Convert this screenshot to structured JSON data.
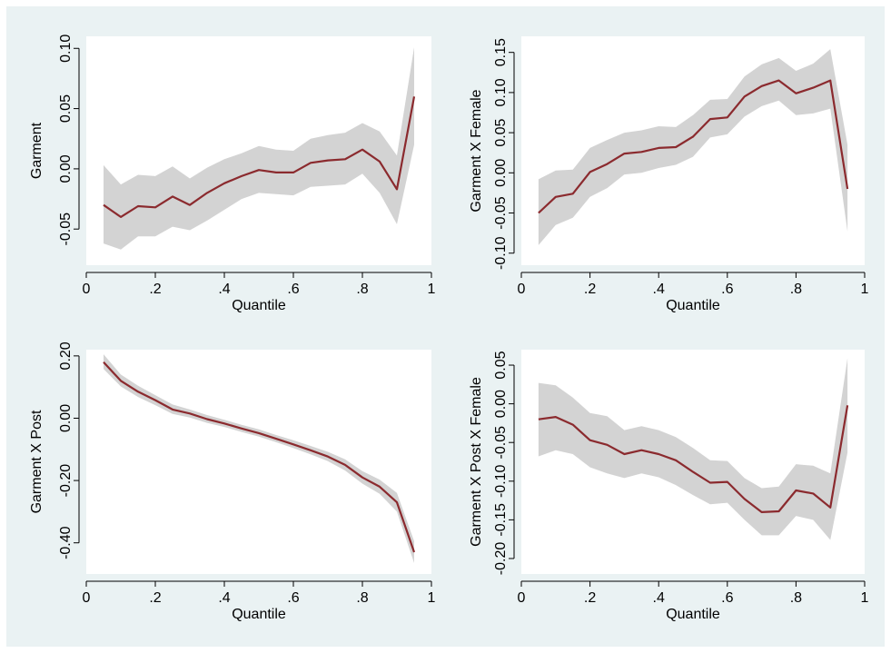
{
  "colors": {
    "background": "#eaf2f3",
    "plot_area": "#ffffff",
    "line": "#8b2a2e",
    "band": "#d3d3d3"
  },
  "chart_data": [
    {
      "type": "line",
      "title": "",
      "xlabel": "Quantile",
      "ylabel": "Garment",
      "xlim": [
        0,
        1
      ],
      "ylim": [
        -0.08,
        0.11
      ],
      "xticks": [
        0,
        0.2,
        0.4,
        0.6,
        0.8,
        1
      ],
      "xtick_labels": [
        "0",
        ".2",
        ".4",
        ".6",
        ".8",
        "1"
      ],
      "yticks": [
        -0.05,
        0.0,
        0.05,
        0.1
      ],
      "ytick_labels": [
        "-0.05",
        "0.00",
        "0.05",
        "0.10"
      ],
      "grid": false,
      "x": [
        0.05,
        0.1,
        0.15,
        0.2,
        0.25,
        0.3,
        0.35,
        0.4,
        0.45,
        0.5,
        0.55,
        0.6,
        0.65,
        0.7,
        0.75,
        0.8,
        0.85,
        0.9,
        0.95
      ],
      "y": [
        -0.03,
        -0.04,
        -0.031,
        -0.032,
        -0.023,
        -0.03,
        -0.02,
        -0.012,
        -0.006,
        -0.001,
        -0.003,
        -0.003,
        0.005,
        0.007,
        0.008,
        0.016,
        0.006,
        -0.017,
        0.06
      ],
      "y_lower": [
        -0.062,
        -0.067,
        -0.056,
        -0.056,
        -0.048,
        -0.051,
        -0.043,
        -0.034,
        -0.025,
        -0.02,
        -0.021,
        -0.022,
        -0.015,
        -0.014,
        -0.013,
        -0.004,
        -0.02,
        -0.046,
        0.02
      ],
      "y_upper": [
        0.003,
        -0.013,
        -0.005,
        -0.006,
        0.002,
        -0.008,
        0.001,
        0.008,
        0.013,
        0.019,
        0.016,
        0.015,
        0.025,
        0.028,
        0.03,
        0.038,
        0.031,
        0.011,
        0.101
      ]
    },
    {
      "type": "line",
      "title": "",
      "xlabel": "Quantile",
      "ylabel": "Garment X Female",
      "xlim": [
        0,
        1
      ],
      "ylim": [
        -0.115,
        0.17
      ],
      "xticks": [
        0,
        0.2,
        0.4,
        0.6,
        0.8,
        1
      ],
      "xtick_labels": [
        "0",
        ".2",
        ".4",
        ".6",
        ".8",
        "1"
      ],
      "yticks": [
        -0.1,
        -0.05,
        0.0,
        0.05,
        0.1,
        0.15
      ],
      "ytick_labels": [
        "-0.10",
        "-0.05",
        "0.00",
        "0.05",
        "0.10",
        "0.15"
      ],
      "grid": false,
      "x": [
        0.05,
        0.1,
        0.15,
        0.2,
        0.25,
        0.3,
        0.35,
        0.4,
        0.45,
        0.5,
        0.55,
        0.6,
        0.65,
        0.7,
        0.75,
        0.8,
        0.85,
        0.9,
        0.95
      ],
      "y": [
        -0.05,
        -0.03,
        -0.026,
        0.001,
        0.011,
        0.024,
        0.026,
        0.031,
        0.032,
        0.045,
        0.067,
        0.069,
        0.095,
        0.108,
        0.115,
        0.099,
        0.106,
        0.115,
        -0.02
      ],
      "y_lower": [
        -0.09,
        -0.065,
        -0.056,
        -0.03,
        -0.019,
        -0.002,
        0.0,
        0.006,
        0.01,
        0.02,
        0.044,
        0.048,
        0.07,
        0.083,
        0.09,
        0.072,
        0.074,
        0.08,
        -0.073
      ],
      "y_upper": [
        -0.008,
        0.003,
        0.004,
        0.031,
        0.041,
        0.05,
        0.053,
        0.058,
        0.057,
        0.072,
        0.091,
        0.092,
        0.12,
        0.135,
        0.143,
        0.127,
        0.136,
        0.154,
        0.035
      ]
    },
    {
      "type": "line",
      "title": "",
      "xlabel": "Quantile",
      "ylabel": "Garment X Post",
      "xlim": [
        0,
        1
      ],
      "ylim": [
        -0.5,
        0.22
      ],
      "xticks": [
        0,
        0.2,
        0.4,
        0.6,
        0.8,
        1
      ],
      "xtick_labels": [
        "0",
        ".2",
        ".4",
        ".6",
        ".8",
        "1"
      ],
      "yticks": [
        -0.4,
        -0.2,
        0.0,
        0.2
      ],
      "ytick_labels": [
        "-0.40",
        "-0.20",
        "0.00",
        "0.20"
      ],
      "grid": false,
      "x": [
        0.05,
        0.1,
        0.15,
        0.2,
        0.25,
        0.3,
        0.35,
        0.4,
        0.45,
        0.5,
        0.55,
        0.6,
        0.65,
        0.7,
        0.75,
        0.8,
        0.85,
        0.9,
        0.95
      ],
      "y": [
        0.18,
        0.12,
        0.085,
        0.058,
        0.028,
        0.015,
        -0.003,
        -0.017,
        -0.033,
        -0.048,
        -0.066,
        -0.084,
        -0.103,
        -0.123,
        -0.15,
        -0.19,
        -0.22,
        -0.27,
        -0.43
      ],
      "y_lower": [
        0.158,
        0.102,
        0.068,
        0.042,
        0.014,
        0.002,
        -0.015,
        -0.028,
        -0.044,
        -0.059,
        -0.077,
        -0.096,
        -0.116,
        -0.138,
        -0.168,
        -0.21,
        -0.243,
        -0.3,
        -0.465
      ],
      "y_upper": [
        0.205,
        0.14,
        0.104,
        0.074,
        0.044,
        0.028,
        0.01,
        -0.005,
        -0.021,
        -0.036,
        -0.054,
        -0.071,
        -0.089,
        -0.108,
        -0.132,
        -0.17,
        -0.197,
        -0.24,
        -0.395
      ]
    },
    {
      "type": "line",
      "title": "",
      "xlabel": "Quantile",
      "ylabel": "Garment X Post X Female",
      "xlim": [
        0,
        1
      ],
      "ylim": [
        -0.22,
        0.07
      ],
      "xticks": [
        0,
        0.2,
        0.4,
        0.6,
        0.8,
        1
      ],
      "xtick_labels": [
        "0",
        ".2",
        ".4",
        ".6",
        ".8",
        "1"
      ],
      "yticks": [
        -0.2,
        -0.15,
        -0.1,
        -0.05,
        0.0,
        0.05
      ],
      "ytick_labels": [
        "-0.20",
        "-0.15",
        "-0.10",
        "-0.05",
        "0.00",
        "0.05"
      ],
      "grid": false,
      "x": [
        0.05,
        0.1,
        0.15,
        0.2,
        0.25,
        0.3,
        0.35,
        0.4,
        0.45,
        0.5,
        0.55,
        0.6,
        0.65,
        0.7,
        0.75,
        0.8,
        0.85,
        0.9,
        0.95
      ],
      "y": [
        -0.02,
        -0.017,
        -0.027,
        -0.047,
        -0.053,
        -0.065,
        -0.06,
        -0.065,
        -0.073,
        -0.088,
        -0.102,
        -0.101,
        -0.123,
        -0.14,
        -0.139,
        -0.112,
        -0.116,
        -0.134,
        -0.002
      ],
      "y_lower": [
        -0.068,
        -0.06,
        -0.065,
        -0.082,
        -0.09,
        -0.096,
        -0.09,
        -0.095,
        -0.105,
        -0.118,
        -0.13,
        -0.128,
        -0.15,
        -0.17,
        -0.17,
        -0.145,
        -0.15,
        -0.176,
        -0.063
      ],
      "y_upper": [
        0.027,
        0.024,
        0.008,
        -0.012,
        -0.016,
        -0.034,
        -0.029,
        -0.034,
        -0.043,
        -0.057,
        -0.073,
        -0.074,
        -0.096,
        -0.109,
        -0.107,
        -0.078,
        -0.08,
        -0.09,
        0.059
      ]
    }
  ]
}
